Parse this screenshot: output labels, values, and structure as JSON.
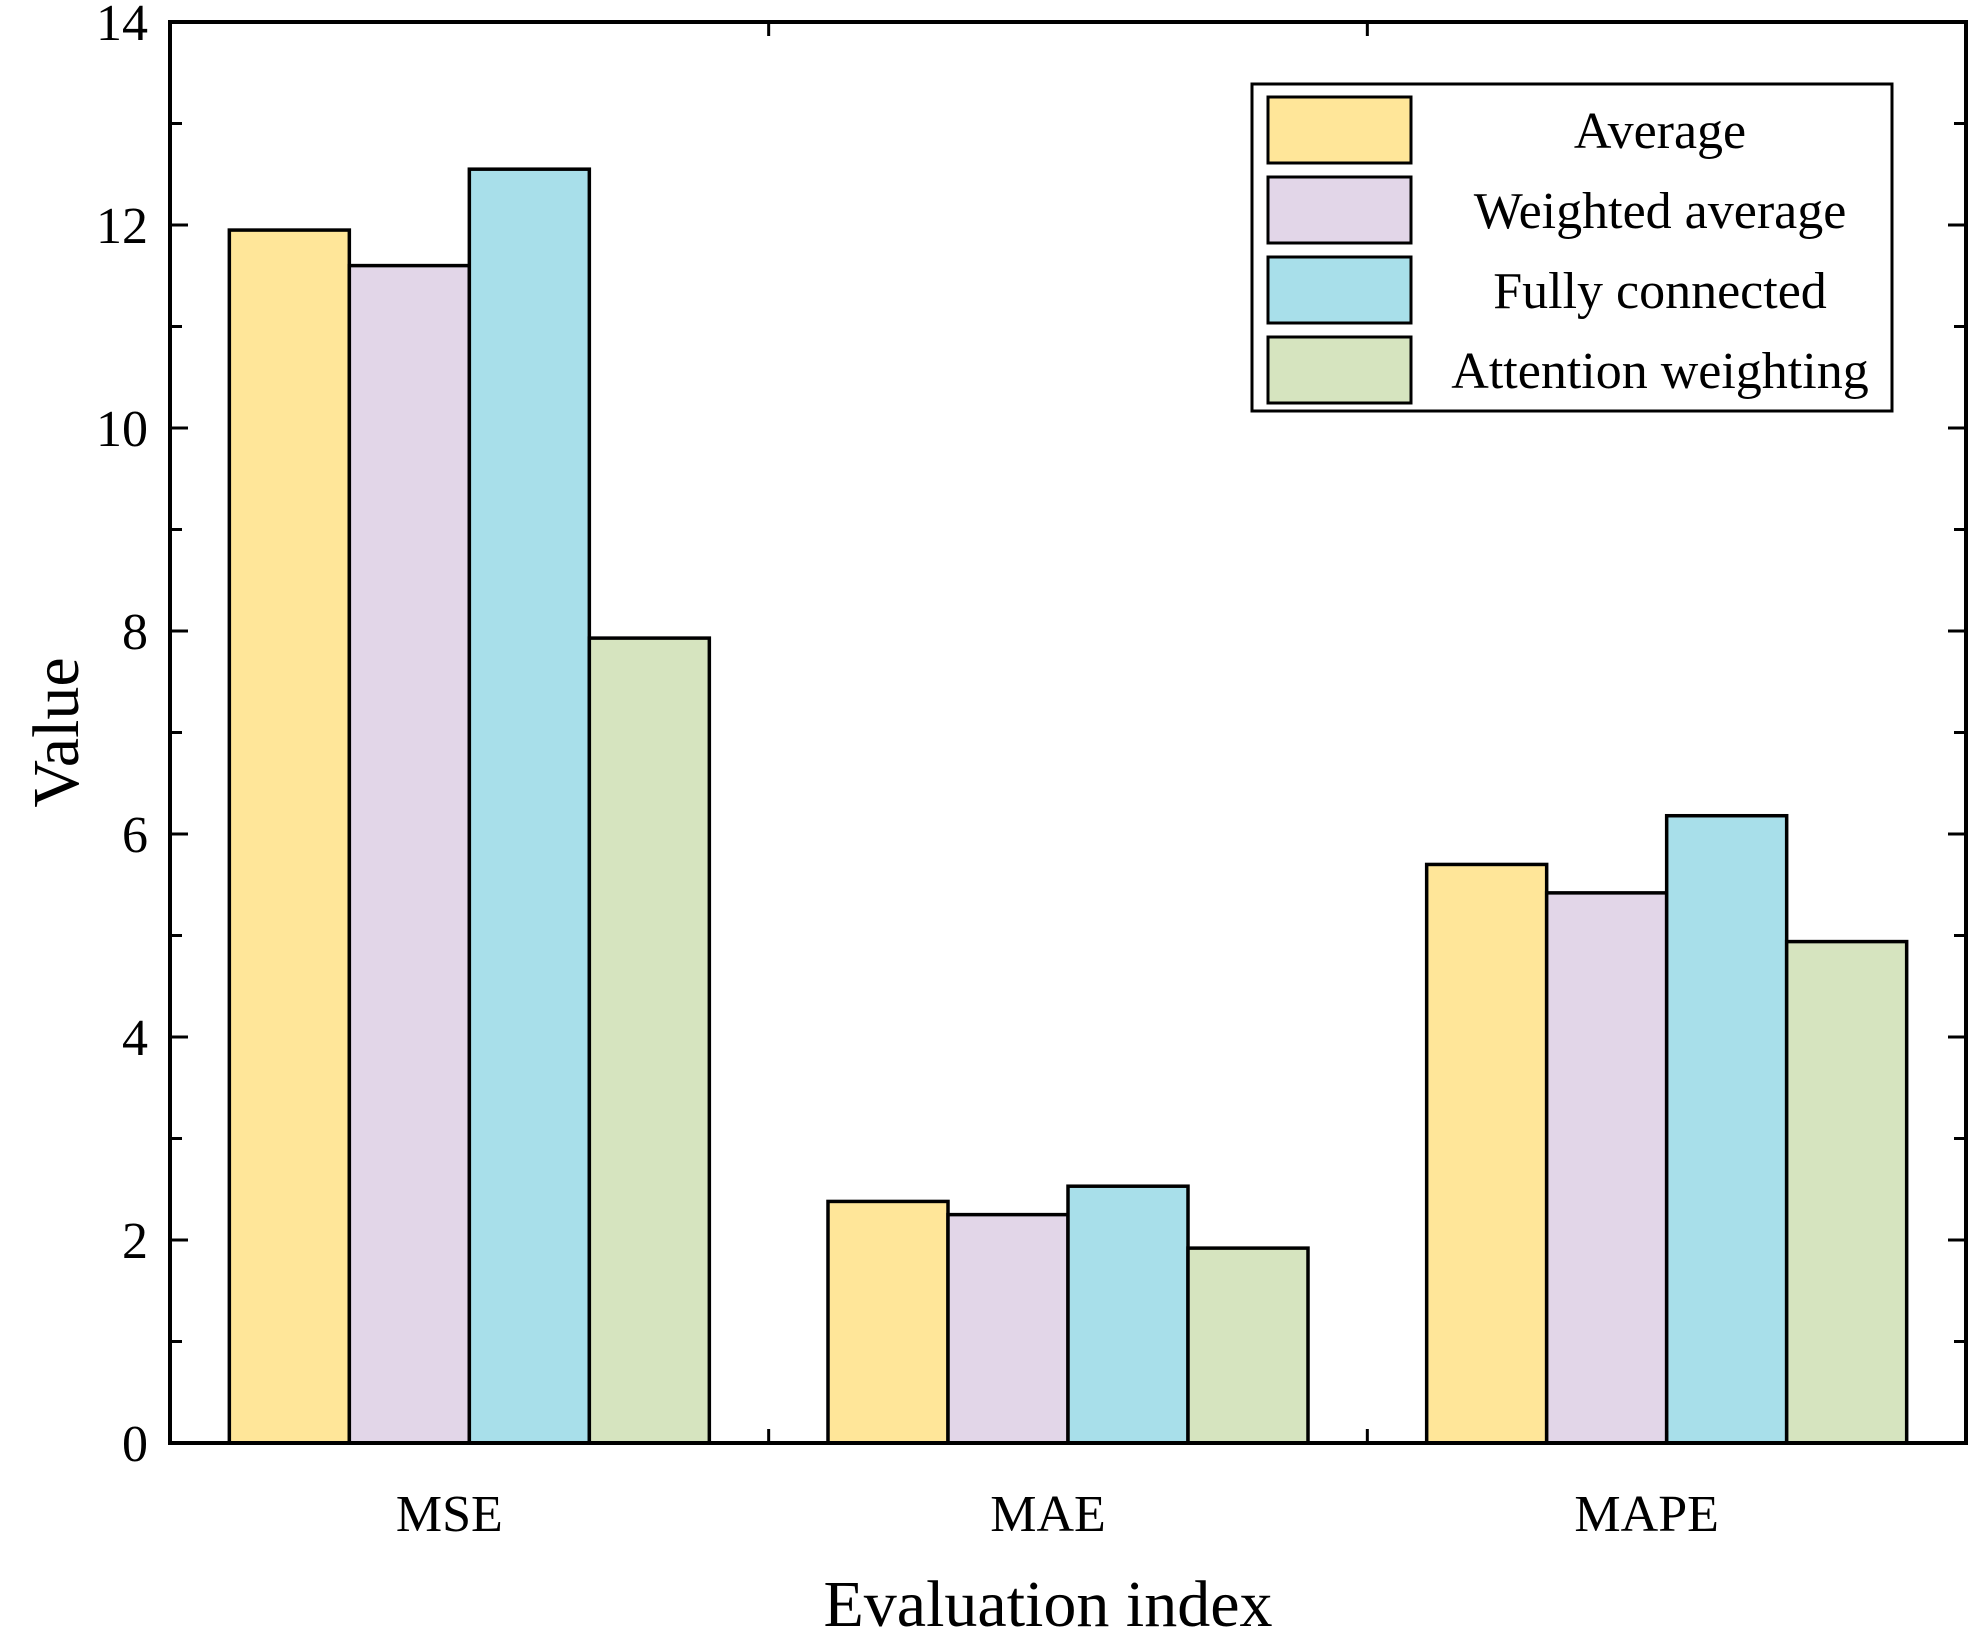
{
  "chart_data": {
    "type": "bar",
    "title": "",
    "xlabel": "Evaluation index",
    "ylabel": "Value",
    "categories": [
      "MSE",
      "MAE",
      "MAPE"
    ],
    "ylim": [
      0,
      14
    ],
    "yticks": [
      0,
      2,
      4,
      6,
      8,
      10,
      12,
      14
    ],
    "grid": false,
    "legend_position": "top-right",
    "series": [
      {
        "name": "Average",
        "color": "#FFE699",
        "values": [
          11.95,
          2.38,
          5.7
        ]
      },
      {
        "name": "Weighted average",
        "color": "#E2D6E8",
        "values": [
          11.6,
          2.25,
          5.42
        ]
      },
      {
        "name": "Fully connected",
        "color": "#A8DFEA",
        "values": [
          12.55,
          2.53,
          6.18
        ]
      },
      {
        "name": "Attention weighting",
        "color": "#D6E4BF",
        "values": [
          7.93,
          1.92,
          4.94
        ]
      }
    ]
  }
}
